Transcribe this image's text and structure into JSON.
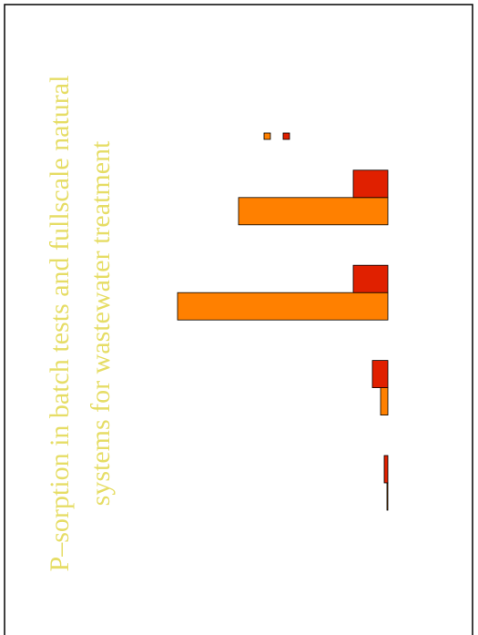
{
  "chart_data": {
    "type": "bar",
    "title": [
      "P–sorption in batch tests and fullscale natural",
      "systems for wastewater treatment"
    ],
    "categories": [
      null,
      null,
      null,
      null
    ],
    "series": [
      {
        "color": "#ff8000",
        "values": [
          1,
          8,
          231,
          164
        ]
      },
      {
        "color": "#e02000",
        "values": [
          4,
          17,
          38,
          38
        ]
      }
    ],
    "ylim": [
      0,
      240
    ]
  }
}
